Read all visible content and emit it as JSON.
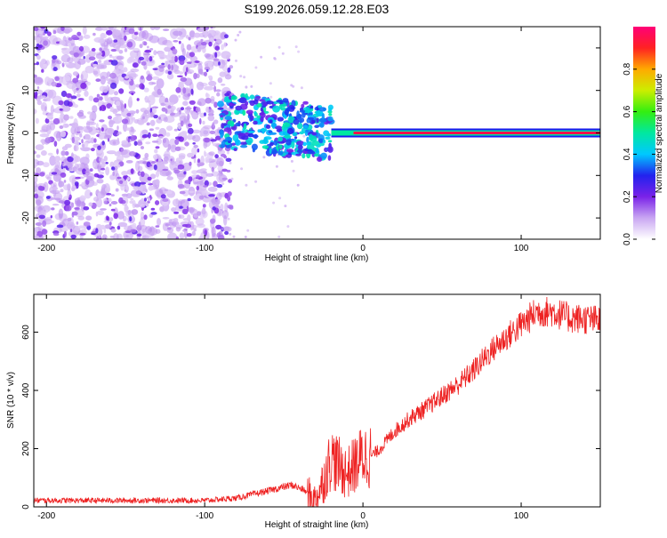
{
  "chart_data": [
    {
      "type": "heatmap",
      "title": "S199.2026.059.12.28.E03",
      "xlabel": "Height of straight line (km)",
      "ylabel": "Frequency (Hz)",
      "xlim": [
        -208,
        150
      ],
      "ylim": [
        -25,
        25
      ],
      "xticks": [
        -200,
        -100,
        0,
        100
      ],
      "yticks": [
        -20,
        -10,
        0,
        10,
        20
      ],
      "colorbar": {
        "label": "Normalized spectral amplitude",
        "range": [
          0,
          1
        ],
        "ticks": [
          0.0,
          0.2,
          0.4,
          0.6,
          0.8
        ]
      },
      "signal_band": {
        "center_freq_hz": 0,
        "x_start_km": -20,
        "x_end_km": 150,
        "amplitude": 0.95
      },
      "scattered_region": {
        "x_start_km": -90,
        "x_end_km": -20,
        "freq_range_hz": [
          -5,
          8
        ],
        "amplitude_range": [
          0.2,
          0.5
        ]
      },
      "noise_region": {
        "x_start_km": -208,
        "x_end_km": -90,
        "amplitude_range": [
          0.05,
          0.25
        ]
      }
    },
    {
      "type": "line",
      "xlabel": "Height of straight line (km)",
      "ylabel": "SNR (10 * v/v)",
      "xlim": [
        -208,
        150
      ],
      "ylim": [
        0,
        730
      ],
      "xticks": [
        -200,
        -100,
        0,
        100
      ],
      "yticks": [
        0,
        200,
        400,
        600
      ],
      "color": "#ee2222",
      "series": [
        {
          "name": "SNR",
          "x": [
            -208,
            -100,
            -80,
            -60,
            -45,
            -38,
            -30,
            -25,
            -20,
            -15,
            -10,
            -5,
            0,
            5,
            10,
            20,
            30,
            40,
            50,
            60,
            70,
            80,
            90,
            100,
            110,
            120,
            130,
            150
          ],
          "values": [
            22,
            22,
            30,
            55,
            75,
            60,
            25,
            90,
            170,
            140,
            115,
            145,
            175,
            175,
            195,
            260,
            305,
            340,
            380,
            420,
            470,
            530,
            580,
            625,
            670,
            670,
            650,
            640
          ]
        }
      ]
    }
  ]
}
